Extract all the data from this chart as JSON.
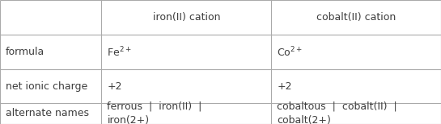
{
  "col_headers": [
    "iron(II) cation",
    "cobalt(II) cation"
  ],
  "row_labels": [
    "formula",
    "net ionic charge",
    "alternate names"
  ],
  "formula_row": [
    "Fe$^{2+}$",
    "Co$^{2+}$"
  ],
  "charge_row": [
    "+2",
    "+2"
  ],
  "alt_names_row": [
    "ferrous  |  iron(II)  |\niron(2+)",
    "cobaltous  |  cobalt(II)  |\ncobalt(2+)"
  ],
  "bg_color": "#ffffff",
  "text_color": "#3d3d3d",
  "line_color": "#aaaaaa",
  "font_size": 9,
  "header_font_size": 9,
  "col_bounds": [
    0.0,
    0.23,
    0.615,
    1.0
  ],
  "row_bounds": [
    1.0,
    0.72,
    0.44,
    0.17,
    0.0
  ]
}
